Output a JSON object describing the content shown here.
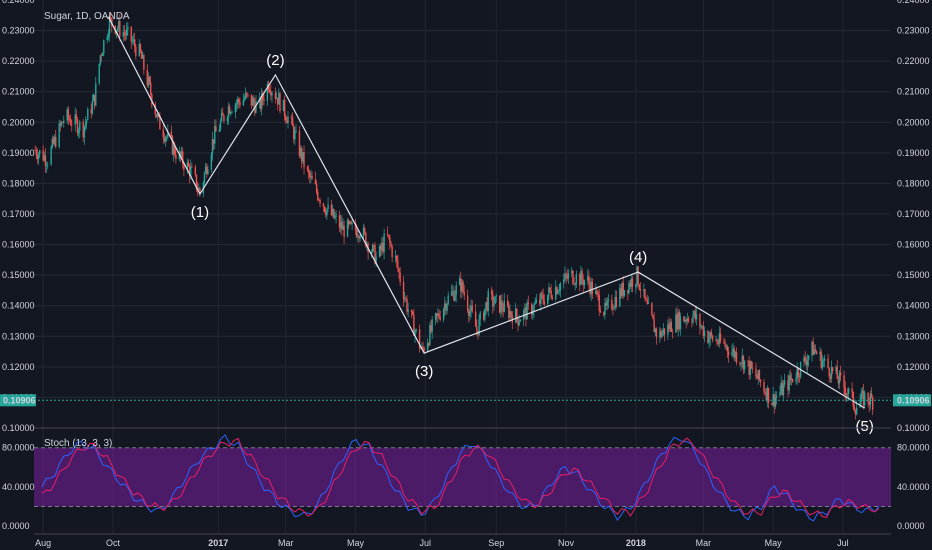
{
  "chart_data": [
    {
      "type": "candlestick",
      "title": "Sugar, 1D, OANDA",
      "ylim": [
        0.1,
        0.24
      ],
      "y_ticks": [
        "0.24000",
        "0.23000",
        "0.22000",
        "0.21000",
        "0.20000",
        "0.19000",
        "0.18000",
        "0.17000",
        "0.16000",
        "0.15000",
        "0.14000",
        "0.13000",
        "0.12000",
        "0.11000",
        "0.10000"
      ],
      "y_tick_values": [
        0.24,
        0.23,
        0.22,
        0.21,
        0.2,
        0.19,
        0.18,
        0.17,
        0.16,
        0.15,
        0.14,
        0.13,
        0.12,
        0.11,
        0.1
      ],
      "x_labels": [
        "Aug",
        "Oct",
        "2017",
        "Mar",
        "May",
        "Jul",
        "Sep",
        "Nov",
        "2018",
        "Mar",
        "May",
        "Jul"
      ],
      "x_label_dates": [
        "2016-08-01",
        "2016-10-01",
        "2017-01-01",
        "2017-03-01",
        "2017-05-01",
        "2017-07-01",
        "2017-09-01",
        "2017-11-01",
        "2018-01-01",
        "2018-03-01",
        "2018-05-01",
        "2018-07-01"
      ],
      "x_range": [
        "2016-07-24",
        "2018-08-12"
      ],
      "last_price": 0.10906,
      "last_price_label": "0.10906",
      "price_path": [
        [
          "2016-07-25",
          0.191
        ],
        [
          "2016-08-05",
          0.188
        ],
        [
          "2016-08-20",
          0.202
        ],
        [
          "2016-09-05",
          0.198
        ],
        [
          "2016-09-15",
          0.208
        ],
        [
          "2016-09-20",
          0.222
        ],
        [
          "2016-09-28",
          0.233
        ],
        [
          "2016-10-15",
          0.228
        ],
        [
          "2016-10-25",
          0.222
        ],
        [
          "2016-11-10",
          0.2
        ],
        [
          "2016-11-25",
          0.19
        ],
        [
          "2016-12-08",
          0.184
        ],
        [
          "2016-12-16",
          0.177
        ],
        [
          "2016-12-28",
          0.195
        ],
        [
          "2017-01-10",
          0.205
        ],
        [
          "2017-01-25",
          0.208
        ],
        [
          "2017-02-06",
          0.205
        ],
        [
          "2017-02-14",
          0.213
        ],
        [
          "2017-02-22",
          0.208
        ],
        [
          "2017-03-05",
          0.2
        ],
        [
          "2017-03-20",
          0.183
        ],
        [
          "2017-04-05",
          0.172
        ],
        [
          "2017-04-20",
          0.165
        ],
        [
          "2017-05-05",
          0.165
        ],
        [
          "2017-05-20",
          0.155
        ],
        [
          "2017-05-28",
          0.163
        ],
        [
          "2017-06-05",
          0.155
        ],
        [
          "2017-06-15",
          0.14
        ],
        [
          "2017-06-28",
          0.125
        ],
        [
          "2017-07-10",
          0.135
        ],
        [
          "2017-07-20",
          0.142
        ],
        [
          "2017-08-01",
          0.147
        ],
        [
          "2017-08-15",
          0.132
        ],
        [
          "2017-08-25",
          0.142
        ],
        [
          "2017-09-05",
          0.14
        ],
        [
          "2017-09-20",
          0.136
        ],
        [
          "2017-10-05",
          0.14
        ],
        [
          "2017-10-20",
          0.145
        ],
        [
          "2017-11-05",
          0.15
        ],
        [
          "2017-11-20",
          0.148
        ],
        [
          "2017-12-05",
          0.138
        ],
        [
          "2017-12-20",
          0.145
        ],
        [
          "2018-01-02",
          0.15
        ],
        [
          "2018-01-10",
          0.14
        ],
        [
          "2018-01-20",
          0.13
        ],
        [
          "2018-02-05",
          0.135
        ],
        [
          "2018-02-20",
          0.137
        ],
        [
          "2018-03-05",
          0.13
        ],
        [
          "2018-03-20",
          0.127
        ],
        [
          "2018-04-05",
          0.122
        ],
        [
          "2018-04-20",
          0.115
        ],
        [
          "2018-04-30",
          0.109
        ],
        [
          "2018-05-15",
          0.115
        ],
        [
          "2018-05-25",
          0.12
        ],
        [
          "2018-06-05",
          0.126
        ],
        [
          "2018-06-15",
          0.121
        ],
        [
          "2018-06-25",
          0.117
        ],
        [
          "2018-07-05",
          0.112
        ],
        [
          "2018-07-12",
          0.107
        ],
        [
          "2018-07-20",
          0.11
        ],
        [
          "2018-07-27",
          0.109
        ]
      ],
      "elliott_wave": [
        {
          "label": "(1)",
          "date": "2016-12-16",
          "value": 0.1765,
          "position": "below"
        },
        {
          "label": "(2)",
          "date": "2017-02-20",
          "value": 0.2155,
          "position": "above"
        },
        {
          "label": "(3)",
          "date": "2017-06-30",
          "value": 0.1245,
          "position": "below"
        },
        {
          "label": "(4)",
          "date": "2018-01-03",
          "value": 0.151,
          "position": "above"
        },
        {
          "label": "(5)",
          "date": "2018-07-20",
          "value": 0.1065,
          "position": "below"
        }
      ],
      "wave_start": {
        "date": "2016-09-27",
        "value": 0.2345
      }
    },
    {
      "type": "line",
      "title": "Stoch (13, 3, 3)",
      "ylim": [
        -8,
        96
      ],
      "y_ticks": [
        "80.0000",
        "40.0000",
        "0.0000"
      ],
      "y_tick_values": [
        80,
        40,
        0
      ],
      "bands": {
        "upper": 80,
        "lower": 20
      },
      "series": [
        {
          "color": "#2962ff",
          "values": [
            [
              0,
              40
            ],
            [
              3,
              55
            ],
            [
              6,
              75
            ],
            [
              9,
              85
            ],
            [
              12,
              78
            ],
            [
              15,
              60
            ],
            [
              18,
              45
            ],
            [
              21,
              30
            ],
            [
              24,
              20
            ],
            [
              27,
              15
            ],
            [
              30,
              30
            ],
            [
              33,
              50
            ],
            [
              36,
              68
            ],
            [
              39,
              80
            ],
            [
              42,
              90
            ],
            [
              45,
              82
            ],
            [
              48,
              60
            ],
            [
              51,
              40
            ],
            [
              54,
              25
            ],
            [
              57,
              15
            ],
            [
              60,
              10
            ],
            [
              63,
              20
            ],
            [
              66,
              45
            ],
            [
              69,
              70
            ],
            [
              72,
              88
            ],
            [
              75,
              80
            ],
            [
              78,
              60
            ],
            [
              81,
              38
            ],
            [
              84,
              20
            ],
            [
              87,
              12
            ],
            [
              90,
              25
            ],
            [
              93,
              50
            ],
            [
              96,
              75
            ],
            [
              99,
              85
            ],
            [
              102,
              70
            ],
            [
              105,
              48
            ],
            [
              108,
              30
            ],
            [
              111,
              18
            ],
            [
              114,
              25
            ],
            [
              117,
              45
            ],
            [
              120,
              60
            ],
            [
              123,
              52
            ],
            [
              126,
              35
            ],
            [
              129,
              20
            ],
            [
              132,
              10
            ],
            [
              135,
              18
            ],
            [
              138,
              40
            ],
            [
              141,
              65
            ],
            [
              144,
              85
            ],
            [
              147,
              90
            ],
            [
              150,
              75
            ],
            [
              153,
              50
            ],
            [
              156,
              30
            ],
            [
              159,
              15
            ],
            [
              162,
              10
            ],
            [
              165,
              20
            ],
            [
              168,
              40
            ],
            [
              171,
              30
            ],
            [
              174,
              15
            ],
            [
              177,
              8
            ],
            [
              180,
              15
            ],
            [
              183,
              28
            ],
            [
              186,
              20
            ],
            [
              189,
              15
            ],
            [
              192,
              20
            ]
          ]
        },
        {
          "color": "#e91e63",
          "values": [
            [
              0,
              30
            ],
            [
              3,
              45
            ],
            [
              6,
              65
            ],
            [
              9,
              80
            ],
            [
              12,
              82
            ],
            [
              15,
              68
            ],
            [
              18,
              50
            ],
            [
              21,
              35
            ],
            [
              24,
              24
            ],
            [
              27,
              18
            ],
            [
              30,
              24
            ],
            [
              33,
              40
            ],
            [
              36,
              60
            ],
            [
              39,
              75
            ],
            [
              42,
              85
            ],
            [
              45,
              86
            ],
            [
              48,
              70
            ],
            [
              51,
              50
            ],
            [
              54,
              32
            ],
            [
              57,
              20
            ],
            [
              60,
              13
            ],
            [
              63,
              15
            ],
            [
              66,
              35
            ],
            [
              69,
              60
            ],
            [
              72,
              80
            ],
            [
              75,
              84
            ],
            [
              78,
              70
            ],
            [
              81,
              48
            ],
            [
              84,
              28
            ],
            [
              87,
              16
            ],
            [
              90,
              18
            ],
            [
              93,
              40
            ],
            [
              96,
              65
            ],
            [
              99,
              80
            ],
            [
              102,
              76
            ],
            [
              105,
              58
            ],
            [
              108,
              38
            ],
            [
              111,
              24
            ],
            [
              114,
              22
            ],
            [
              117,
              38
            ],
            [
              120,
              55
            ],
            [
              123,
              56
            ],
            [
              126,
              42
            ],
            [
              129,
              27
            ],
            [
              132,
              15
            ],
            [
              135,
              14
            ],
            [
              138,
              30
            ],
            [
              141,
              55
            ],
            [
              144,
              78
            ],
            [
              147,
              88
            ],
            [
              150,
              82
            ],
            [
              153,
              60
            ],
            [
              156,
              40
            ],
            [
              159,
              22
            ],
            [
              162,
              13
            ],
            [
              165,
              15
            ],
            [
              168,
              32
            ],
            [
              171,
              34
            ],
            [
              174,
              22
            ],
            [
              177,
              12
            ],
            [
              180,
              12
            ],
            [
              183,
              22
            ],
            [
              186,
              24
            ],
            [
              189,
              18
            ],
            [
              192,
              18
            ]
          ]
        }
      ]
    }
  ]
}
